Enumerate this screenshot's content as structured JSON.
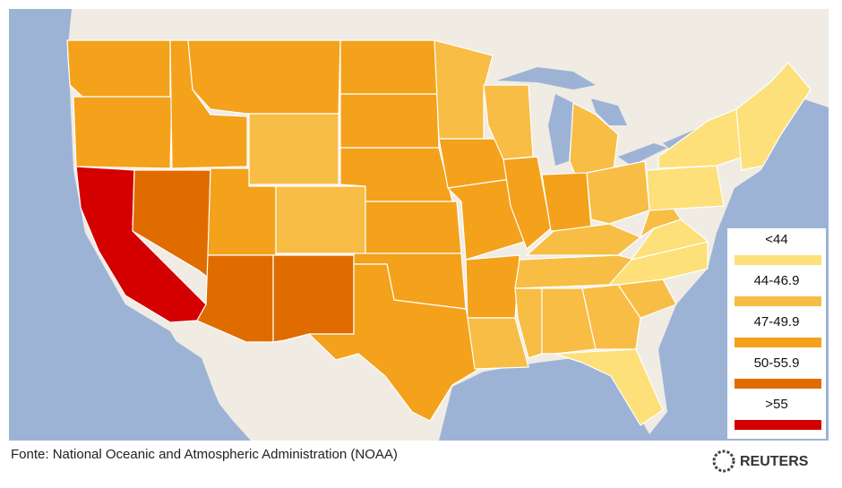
{
  "legend": [
    {
      "label": "<44",
      "color": "#fde07a"
    },
    {
      "label": "44-46.9",
      "color": "#f7bd45"
    },
    {
      "label": "47-49.9",
      "color": "#f4a11b"
    },
    {
      "label": "50-55.9",
      "color": "#e06c00"
    },
    {
      "label": ">55",
      "color": "#d40000"
    }
  ],
  "source": "Fonte: National Oceanic and Atmospheric Administration (NOAA)",
  "logo": "REUTERS"
}
